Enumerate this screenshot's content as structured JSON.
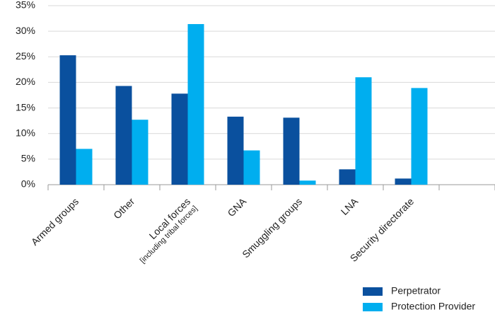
{
  "chart_data": {
    "type": "bar",
    "categories": [
      "Armed groups",
      "Other",
      "Local forces",
      "GNA",
      "Smuggling groups",
      "LNA",
      "Security directorate",
      null
    ],
    "category_sublabels": [
      null,
      null,
      "[including tribal forces]",
      null,
      null,
      null,
      null,
      null
    ],
    "series": [
      {
        "name": "Perpetrator",
        "color": "#0a509e",
        "values": [
          25.3,
          19.3,
          17.8,
          13.3,
          13.1,
          3.0,
          1.2,
          null
        ]
      },
      {
        "name": "Protection Provider",
        "color": "#00aeef",
        "values": [
          7.0,
          12.7,
          31.4,
          6.7,
          0.8,
          21.0,
          18.9,
          null
        ]
      }
    ],
    "ylim": [
      0,
      35
    ],
    "yticks": [
      {
        "value": 0,
        "label": "0%"
      },
      {
        "value": 5,
        "label": "5%"
      },
      {
        "value": 10,
        "label": "10%"
      },
      {
        "value": 15,
        "label": "15%"
      },
      {
        "value": 20,
        "label": "20%"
      },
      {
        "value": 25,
        "label": "25%"
      },
      {
        "value": 30,
        "label": "30%"
      },
      {
        "value": 35,
        "label": "35%"
      }
    ],
    "grid": true,
    "legend": "bottom-right"
  }
}
